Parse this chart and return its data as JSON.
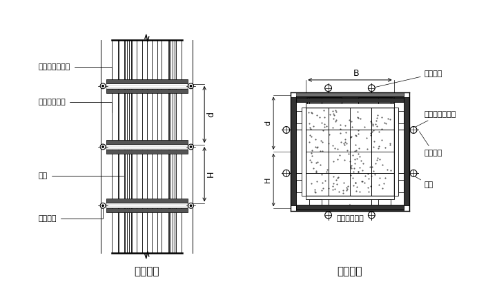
{
  "bg_color": "#ffffff",
  "line_color": "#000000",
  "title_fontsize": 11,
  "label_fontsize": 8,
  "title1": "柱立面图",
  "title2": "柱剖面图",
  "label_zhulan": "柱箍（圆钢管）",
  "label_zhumao": "竖愣（方木）",
  "label_mianban": "面板",
  "label_duila": "对拉螺栓",
  "label_B": "B",
  "label_d": "d",
  "label_H": "H"
}
